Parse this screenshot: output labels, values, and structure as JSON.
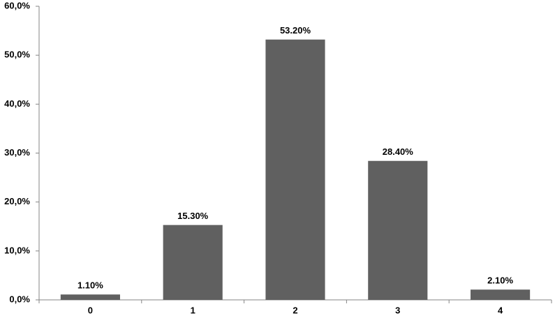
{
  "chart_data": {
    "type": "bar",
    "categories": [
      "0",
      "1",
      "2",
      "3",
      "4"
    ],
    "values": [
      1.1,
      15.3,
      53.2,
      28.4,
      2.1
    ],
    "value_labels": [
      "1.10%",
      "15.30%",
      "53.20%",
      "28.40%",
      "2.10%"
    ],
    "color": "#606060",
    "ylim": [
      0,
      60
    ],
    "yticks": [
      {
        "value": 0,
        "label": "0,0%"
      },
      {
        "value": 10,
        "label": "10,0%"
      },
      {
        "value": 20,
        "label": "20,0%"
      },
      {
        "value": 30,
        "label": "30,0%"
      },
      {
        "value": 40,
        "label": "40,0%"
      },
      {
        "value": 50,
        "label": "50,0%"
      },
      {
        "value": 60,
        "label": "60,0%"
      }
    ],
    "grid": false
  }
}
